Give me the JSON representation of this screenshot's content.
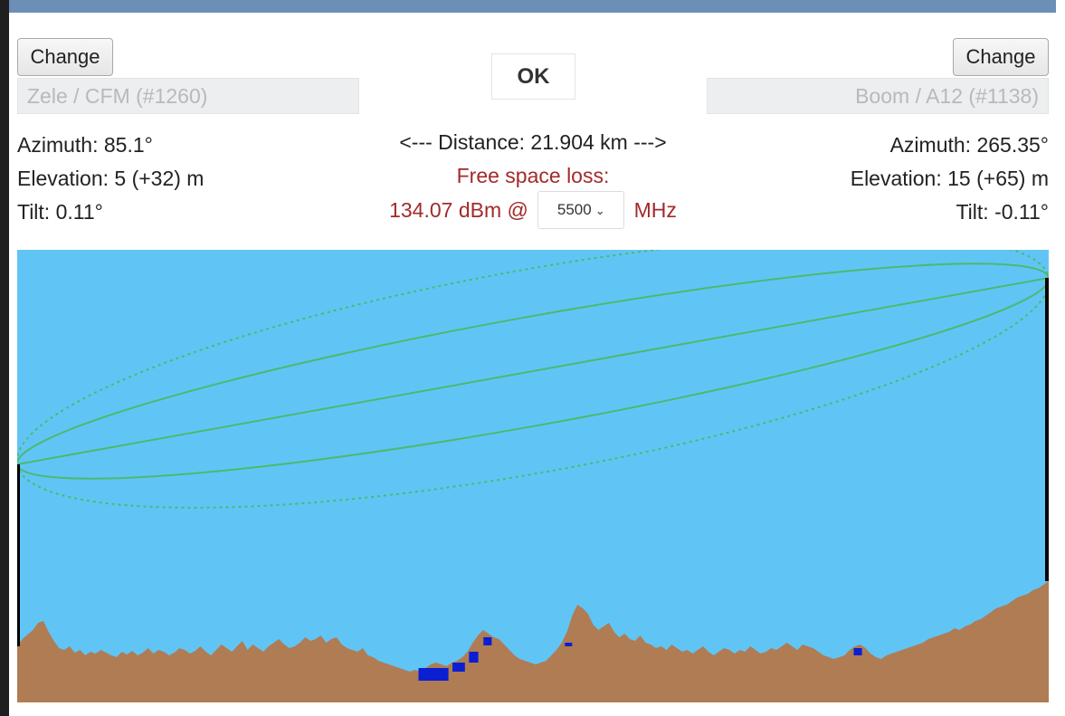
{
  "buttons": {
    "change_left": "Change",
    "change_right": "Change",
    "ok": "OK"
  },
  "site_left": {
    "value": "Zele / CFM (#1260)"
  },
  "site_right": {
    "value": "Boom / A12 (#1138)"
  },
  "left_info": {
    "azimuth": "Azimuth: 85.1°",
    "elevation": "Elevation: 5 (+32) m",
    "tilt": "Tilt: 0.11°"
  },
  "right_info": {
    "azimuth": "Azimuth: 265.35°",
    "elevation": "Elevation: 15 (+65) m",
    "tilt": "Tilt: -0.11°"
  },
  "center": {
    "distance": "<--- Distance: 21.904 km --->",
    "free_space_label": "Free space loss:",
    "loss_value": "134.07 dBm @",
    "frequency": "5500",
    "frequency_unit": "MHz"
  },
  "colors": {
    "sky": "#60c5f5",
    "terrain": "#b07c54",
    "water": "#0a1fd1",
    "fresnel": "#4cb96f",
    "mast": "#000000",
    "loss_text": "#a32a2a"
  },
  "icons": {
    "frequency_select": "chevron-down-icon"
  },
  "profile": {
    "terrain": [
      62,
      70,
      75,
      80,
      88,
      90,
      78,
      68,
      60,
      58,
      62,
      55,
      58,
      52,
      56,
      54,
      58,
      55,
      52,
      50,
      56,
      53,
      57,
      52,
      55,
      60,
      54,
      58,
      56,
      52,
      55,
      60,
      58,
      54,
      57,
      62,
      56,
      52,
      58,
      64,
      60,
      56,
      62,
      68,
      58,
      64,
      60,
      56,
      62,
      66,
      70,
      64,
      60,
      62,
      66,
      72,
      68,
      70,
      74,
      66,
      70,
      72,
      64,
      60,
      58,
      56,
      60,
      52,
      50,
      46,
      44,
      42,
      40,
      38,
      36,
      34,
      36,
      34,
      38,
      42,
      44,
      42,
      40,
      44,
      46,
      50,
      56,
      66,
      74,
      80,
      76,
      72,
      70,
      64,
      58,
      52,
      48,
      46,
      44,
      42,
      44,
      46,
      52,
      58,
      66,
      78,
      96,
      108,
      104,
      98,
      86,
      80,
      84,
      88,
      78,
      72,
      76,
      70,
      68,
      74,
      66,
      64,
      60,
      62,
      58,
      64,
      60,
      56,
      58,
      54,
      58,
      62,
      56,
      52,
      56,
      60,
      58,
      54,
      58,
      56,
      62,
      58,
      54,
      56,
      60,
      58,
      62,
      66,
      62,
      58,
      64,
      62,
      60,
      56,
      52,
      50,
      48,
      50,
      52,
      58,
      62,
      64,
      60,
      54,
      50,
      48,
      52,
      54,
      56,
      58,
      60,
      62,
      64,
      66,
      70,
      72,
      74,
      76,
      78,
      82,
      80,
      84,
      86,
      90,
      92,
      96,
      100,
      104,
      106,
      108,
      112,
      116,
      118,
      120,
      124,
      126,
      130,
      134
    ],
    "water": [
      {
        "from": 0.389,
        "to": 0.418,
        "depth": 14
      },
      {
        "from": 0.422,
        "to": 0.434,
        "depth": 10
      },
      {
        "from": 0.438,
        "to": 0.447,
        "depth": 12
      },
      {
        "from": 0.452,
        "to": 0.46,
        "depth": 9
      },
      {
        "from": 0.531,
        "to": 0.538,
        "depth": 4
      },
      {
        "from": 0.811,
        "to": 0.819,
        "depth": 8
      }
    ],
    "antenna_left": 0.474,
    "antenna_right": 0.062
  }
}
